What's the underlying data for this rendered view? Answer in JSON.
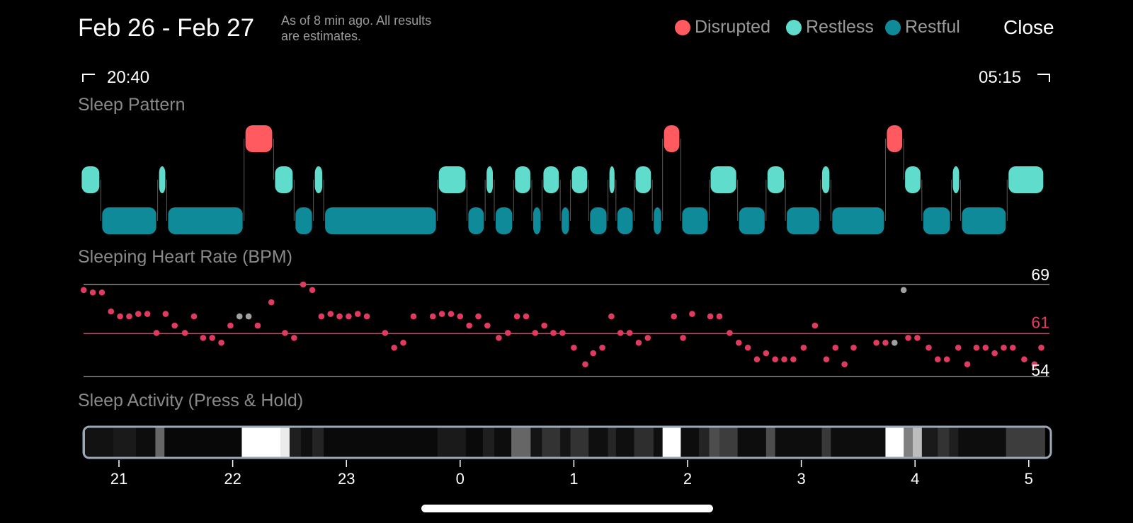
{
  "header": {
    "title": "Feb 26 - Feb 27",
    "subtitle_line1": "As of 8 min ago. All results",
    "subtitle_line2": "are estimates.",
    "close_label": "Close"
  },
  "legend": [
    {
      "label": "Disrupted",
      "color": "#ff5a5f"
    },
    {
      "label": "Restless",
      "color": "#5fdccb"
    },
    {
      "label": "Restful",
      "color": "#0f8a99"
    }
  ],
  "range": {
    "start": "20:40",
    "end": "05:15"
  },
  "sleep_pattern": {
    "title": "Sleep Pattern",
    "stages": [
      {
        "stage": "restless",
        "start": 20.66,
        "end": 20.84
      },
      {
        "stage": "restful",
        "start": 20.84,
        "end": 21.34
      },
      {
        "stage": "restless",
        "start": 21.34,
        "end": 21.42
      },
      {
        "stage": "restful",
        "start": 21.42,
        "end": 22.1
      },
      {
        "stage": "disrupted",
        "start": 22.1,
        "end": 22.36
      },
      {
        "stage": "restless",
        "start": 22.36,
        "end": 22.54
      },
      {
        "stage": "restful",
        "start": 22.54,
        "end": 22.71
      },
      {
        "stage": "restless",
        "start": 22.71,
        "end": 22.8
      },
      {
        "stage": "restful",
        "start": 22.8,
        "end": 23.8
      },
      {
        "stage": "restless",
        "start": 23.8,
        "end": 24.06
      },
      {
        "stage": "restful",
        "start": 24.06,
        "end": 24.22
      },
      {
        "stage": "restless",
        "start": 24.22,
        "end": 24.3
      },
      {
        "stage": "restful",
        "start": 24.3,
        "end": 24.47
      },
      {
        "stage": "restless",
        "start": 24.47,
        "end": 24.63
      },
      {
        "stage": "restful",
        "start": 24.63,
        "end": 24.72
      },
      {
        "stage": "restless",
        "start": 24.72,
        "end": 24.88
      },
      {
        "stage": "restful",
        "start": 24.88,
        "end": 24.97
      },
      {
        "stage": "restless",
        "start": 24.97,
        "end": 25.13
      },
      {
        "stage": "restful",
        "start": 25.13,
        "end": 25.3
      },
      {
        "stage": "restless",
        "start": 25.3,
        "end": 25.37
      },
      {
        "stage": "restful",
        "start": 25.37,
        "end": 25.53
      },
      {
        "stage": "restless",
        "start": 25.53,
        "end": 25.69
      },
      {
        "stage": "restful",
        "start": 25.69,
        "end": 25.78
      },
      {
        "stage": "disrupted",
        "start": 25.78,
        "end": 25.94
      },
      {
        "stage": "restful",
        "start": 25.94,
        "end": 26.19
      },
      {
        "stage": "restless",
        "start": 26.19,
        "end": 26.44
      },
      {
        "stage": "restful",
        "start": 26.44,
        "end": 26.69
      },
      {
        "stage": "restless",
        "start": 26.69,
        "end": 26.86
      },
      {
        "stage": "restful",
        "start": 26.86,
        "end": 27.17
      },
      {
        "stage": "restless",
        "start": 27.17,
        "end": 27.26
      },
      {
        "stage": "restful",
        "start": 27.26,
        "end": 27.74
      },
      {
        "stage": "disrupted",
        "start": 27.74,
        "end": 27.9
      },
      {
        "stage": "restless",
        "start": 27.9,
        "end": 28.06
      },
      {
        "stage": "restful",
        "start": 28.06,
        "end": 28.32
      },
      {
        "stage": "restless",
        "start": 28.32,
        "end": 28.4
      },
      {
        "stage": "restful",
        "start": 28.4,
        "end": 28.81
      },
      {
        "stage": "restless",
        "start": 28.81,
        "end": 29.14
      }
    ]
  },
  "heart_rate": {
    "title": "Sleeping Heart Rate (BPM)",
    "max_label": "69",
    "avg_label": "61",
    "min_label": "54",
    "max": 69,
    "avg": 61,
    "min": 54,
    "points": [
      {
        "t": 20.69,
        "v": 68.1
      },
      {
        "t": 20.77,
        "v": 67.7
      },
      {
        "t": 20.85,
        "v": 67.7
      },
      {
        "t": 20.93,
        "v": 64.6
      },
      {
        "t": 21.01,
        "v": 63.8
      },
      {
        "t": 21.09,
        "v": 63.8
      },
      {
        "t": 21.17,
        "v": 64.2
      },
      {
        "t": 21.25,
        "v": 64.2
      },
      {
        "t": 21.33,
        "v": 61.1
      },
      {
        "t": 21.41,
        "v": 64.2
      },
      {
        "t": 21.49,
        "v": 62.3
      },
      {
        "t": 21.58,
        "v": 61.1
      },
      {
        "t": 21.66,
        "v": 63.8
      },
      {
        "t": 21.74,
        "v": 60.3
      },
      {
        "t": 21.82,
        "v": 60.3
      },
      {
        "t": 21.9,
        "v": 59.5
      },
      {
        "t": 21.98,
        "v": 62.3
      },
      {
        "t": 22.06,
        "v": 63.8,
        "artifact": true
      },
      {
        "t": 22.14,
        "v": 63.8,
        "artifact": true
      },
      {
        "t": 22.22,
        "v": 62.3
      },
      {
        "t": 22.34,
        "v": 66.1
      },
      {
        "t": 22.46,
        "v": 61.1
      },
      {
        "t": 22.54,
        "v": 60.3
      },
      {
        "t": 22.62,
        "v": 69.0
      },
      {
        "t": 22.7,
        "v": 68.1
      },
      {
        "t": 22.78,
        "v": 63.8
      },
      {
        "t": 22.86,
        "v": 64.2
      },
      {
        "t": 22.94,
        "v": 63.8
      },
      {
        "t": 23.02,
        "v": 63.8
      },
      {
        "t": 23.1,
        "v": 64.2
      },
      {
        "t": 23.18,
        "v": 63.8
      },
      {
        "t": 23.34,
        "v": 61.1
      },
      {
        "t": 23.42,
        "v": 58.7
      },
      {
        "t": 23.5,
        "v": 59.5
      },
      {
        "t": 23.59,
        "v": 63.8
      },
      {
        "t": 23.76,
        "v": 63.8
      },
      {
        "t": 23.84,
        "v": 64.2
      },
      {
        "t": 23.92,
        "v": 64.2
      },
      {
        "t": 24.0,
        "v": 63.8
      },
      {
        "t": 24.08,
        "v": 62.3
      },
      {
        "t": 24.16,
        "v": 63.8
      },
      {
        "t": 24.24,
        "v": 62.3
      },
      {
        "t": 24.34,
        "v": 60.3
      },
      {
        "t": 24.42,
        "v": 61.1
      },
      {
        "t": 24.5,
        "v": 63.8
      },
      {
        "t": 24.58,
        "v": 63.8
      },
      {
        "t": 24.66,
        "v": 61.1
      },
      {
        "t": 24.74,
        "v": 62.3
      },
      {
        "t": 24.82,
        "v": 61.1
      },
      {
        "t": 24.9,
        "v": 61.1
      },
      {
        "t": 25.0,
        "v": 58.7
      },
      {
        "t": 25.1,
        "v": 56.0
      },
      {
        "t": 25.17,
        "v": 57.8
      },
      {
        "t": 25.25,
        "v": 58.7
      },
      {
        "t": 25.33,
        "v": 63.8
      },
      {
        "t": 25.41,
        "v": 61.1
      },
      {
        "t": 25.49,
        "v": 61.1
      },
      {
        "t": 25.57,
        "v": 59.5
      },
      {
        "t": 25.65,
        "v": 60.3
      },
      {
        "t": 25.88,
        "v": 63.8
      },
      {
        "t": 25.96,
        "v": 60.3
      },
      {
        "t": 26.04,
        "v": 64.2
      },
      {
        "t": 26.2,
        "v": 63.8
      },
      {
        "t": 26.28,
        "v": 63.8
      },
      {
        "t": 26.37,
        "v": 61.1
      },
      {
        "t": 26.45,
        "v": 59.5
      },
      {
        "t": 26.53,
        "v": 58.7
      },
      {
        "t": 26.61,
        "v": 56.8
      },
      {
        "t": 26.69,
        "v": 57.8
      },
      {
        "t": 26.77,
        "v": 56.8
      },
      {
        "t": 26.85,
        "v": 56.8
      },
      {
        "t": 26.93,
        "v": 56.8
      },
      {
        "t": 27.02,
        "v": 58.7
      },
      {
        "t": 27.12,
        "v": 62.3
      },
      {
        "t": 27.22,
        "v": 56.8
      },
      {
        "t": 27.3,
        "v": 58.7
      },
      {
        "t": 27.38,
        "v": 56.0
      },
      {
        "t": 27.46,
        "v": 58.7
      },
      {
        "t": 27.66,
        "v": 59.5
      },
      {
        "t": 27.74,
        "v": 59.5
      },
      {
        "t": 27.82,
        "v": 59.5,
        "artifact": true
      },
      {
        "t": 27.9,
        "v": 68.1,
        "artifact": true
      },
      {
        "t": 27.94,
        "v": 60.3
      },
      {
        "t": 28.02,
        "v": 60.3
      },
      {
        "t": 28.12,
        "v": 58.7
      },
      {
        "t": 28.2,
        "v": 56.8
      },
      {
        "t": 28.28,
        "v": 56.8
      },
      {
        "t": 28.38,
        "v": 58.7
      },
      {
        "t": 28.46,
        "v": 56.0
      },
      {
        "t": 28.54,
        "v": 58.7
      },
      {
        "t": 28.62,
        "v": 58.7
      },
      {
        "t": 28.7,
        "v": 57.8
      },
      {
        "t": 28.78,
        "v": 58.7
      },
      {
        "t": 28.86,
        "v": 58.7
      },
      {
        "t": 28.96,
        "v": 56.8
      },
      {
        "t": 29.05,
        "v": 56.0
      },
      {
        "t": 29.11,
        "v": 58.7
      }
    ]
  },
  "activity": {
    "title": "Sleep Activity (Press & Hold)",
    "segments": [
      {
        "start": 20.66,
        "end": 20.7,
        "level": 1.0
      },
      {
        "start": 20.7,
        "end": 20.95,
        "level": 0.07
      },
      {
        "start": 20.95,
        "end": 21.15,
        "level": 0.1
      },
      {
        "start": 21.15,
        "end": 21.32,
        "level": 0.05
      },
      {
        "start": 21.32,
        "end": 21.4,
        "level": 0.4
      },
      {
        "start": 21.4,
        "end": 22.08,
        "level": 0.03
      },
      {
        "start": 22.08,
        "end": 22.42,
        "level": 1.0
      },
      {
        "start": 22.42,
        "end": 22.5,
        "level": 0.92
      },
      {
        "start": 22.5,
        "end": 22.6,
        "level": 0.12
      },
      {
        "start": 22.6,
        "end": 22.7,
        "level": 0.06
      },
      {
        "start": 22.7,
        "end": 22.8,
        "level": 0.14
      },
      {
        "start": 22.8,
        "end": 23.8,
        "level": 0.04
      },
      {
        "start": 23.8,
        "end": 24.05,
        "level": 0.1
      },
      {
        "start": 24.05,
        "end": 24.2,
        "level": 0.04
      },
      {
        "start": 24.2,
        "end": 24.3,
        "level": 0.12
      },
      {
        "start": 24.3,
        "end": 24.45,
        "level": 0.05
      },
      {
        "start": 24.45,
        "end": 24.62,
        "level": 0.4
      },
      {
        "start": 24.62,
        "end": 24.72,
        "level": 0.08
      },
      {
        "start": 24.72,
        "end": 24.88,
        "level": 0.2
      },
      {
        "start": 24.88,
        "end": 24.97,
        "level": 0.08
      },
      {
        "start": 24.97,
        "end": 25.13,
        "level": 0.2
      },
      {
        "start": 25.13,
        "end": 25.3,
        "level": 0.06
      },
      {
        "start": 25.3,
        "end": 25.37,
        "level": 0.15
      },
      {
        "start": 25.37,
        "end": 25.53,
        "level": 0.06
      },
      {
        "start": 25.53,
        "end": 25.7,
        "level": 0.18
      },
      {
        "start": 25.7,
        "end": 25.78,
        "level": 0.06
      },
      {
        "start": 25.78,
        "end": 25.94,
        "level": 1.0
      },
      {
        "start": 25.94,
        "end": 26.1,
        "level": 0.05
      },
      {
        "start": 26.1,
        "end": 26.19,
        "level": 0.14
      },
      {
        "start": 26.19,
        "end": 26.28,
        "level": 0.3
      },
      {
        "start": 26.28,
        "end": 26.44,
        "level": 0.24
      },
      {
        "start": 26.44,
        "end": 26.69,
        "level": 0.05
      },
      {
        "start": 26.69,
        "end": 26.77,
        "level": 0.3
      },
      {
        "start": 26.77,
        "end": 27.18,
        "level": 0.05
      },
      {
        "start": 27.18,
        "end": 27.26,
        "level": 0.22
      },
      {
        "start": 27.26,
        "end": 27.74,
        "level": 0.05
      },
      {
        "start": 27.74,
        "end": 27.9,
        "level": 1.0
      },
      {
        "start": 27.9,
        "end": 27.98,
        "level": 0.5
      },
      {
        "start": 27.98,
        "end": 28.06,
        "level": 0.74
      },
      {
        "start": 28.06,
        "end": 28.2,
        "level": 0.1
      },
      {
        "start": 28.2,
        "end": 28.3,
        "level": 0.2
      },
      {
        "start": 28.3,
        "end": 28.38,
        "level": 0.12
      },
      {
        "start": 28.38,
        "end": 28.8,
        "level": 0.05
      },
      {
        "start": 28.8,
        "end": 29.14,
        "level": 0.24
      }
    ]
  },
  "axis": {
    "ticks": [
      {
        "label": "21",
        "t": 21
      },
      {
        "label": "22",
        "t": 22
      },
      {
        "label": "23",
        "t": 23
      },
      {
        "label": "0",
        "t": 24
      },
      {
        "label": "1",
        "t": 25
      },
      {
        "label": "2",
        "t": 26
      },
      {
        "label": "3",
        "t": 27
      },
      {
        "label": "4",
        "t": 28
      },
      {
        "label": "5",
        "t": 29
      }
    ]
  },
  "colors": {
    "disrupted": "#ff5a5f",
    "restless": "#5fdccb",
    "restful": "#0f8a99",
    "heart_dot": "#e03a5f",
    "artifact_dot": "#a0a0a0",
    "avg_line": "#e03a5f",
    "grid_line": "#8a8a8a",
    "activity_border": "#9aa8b8"
  }
}
